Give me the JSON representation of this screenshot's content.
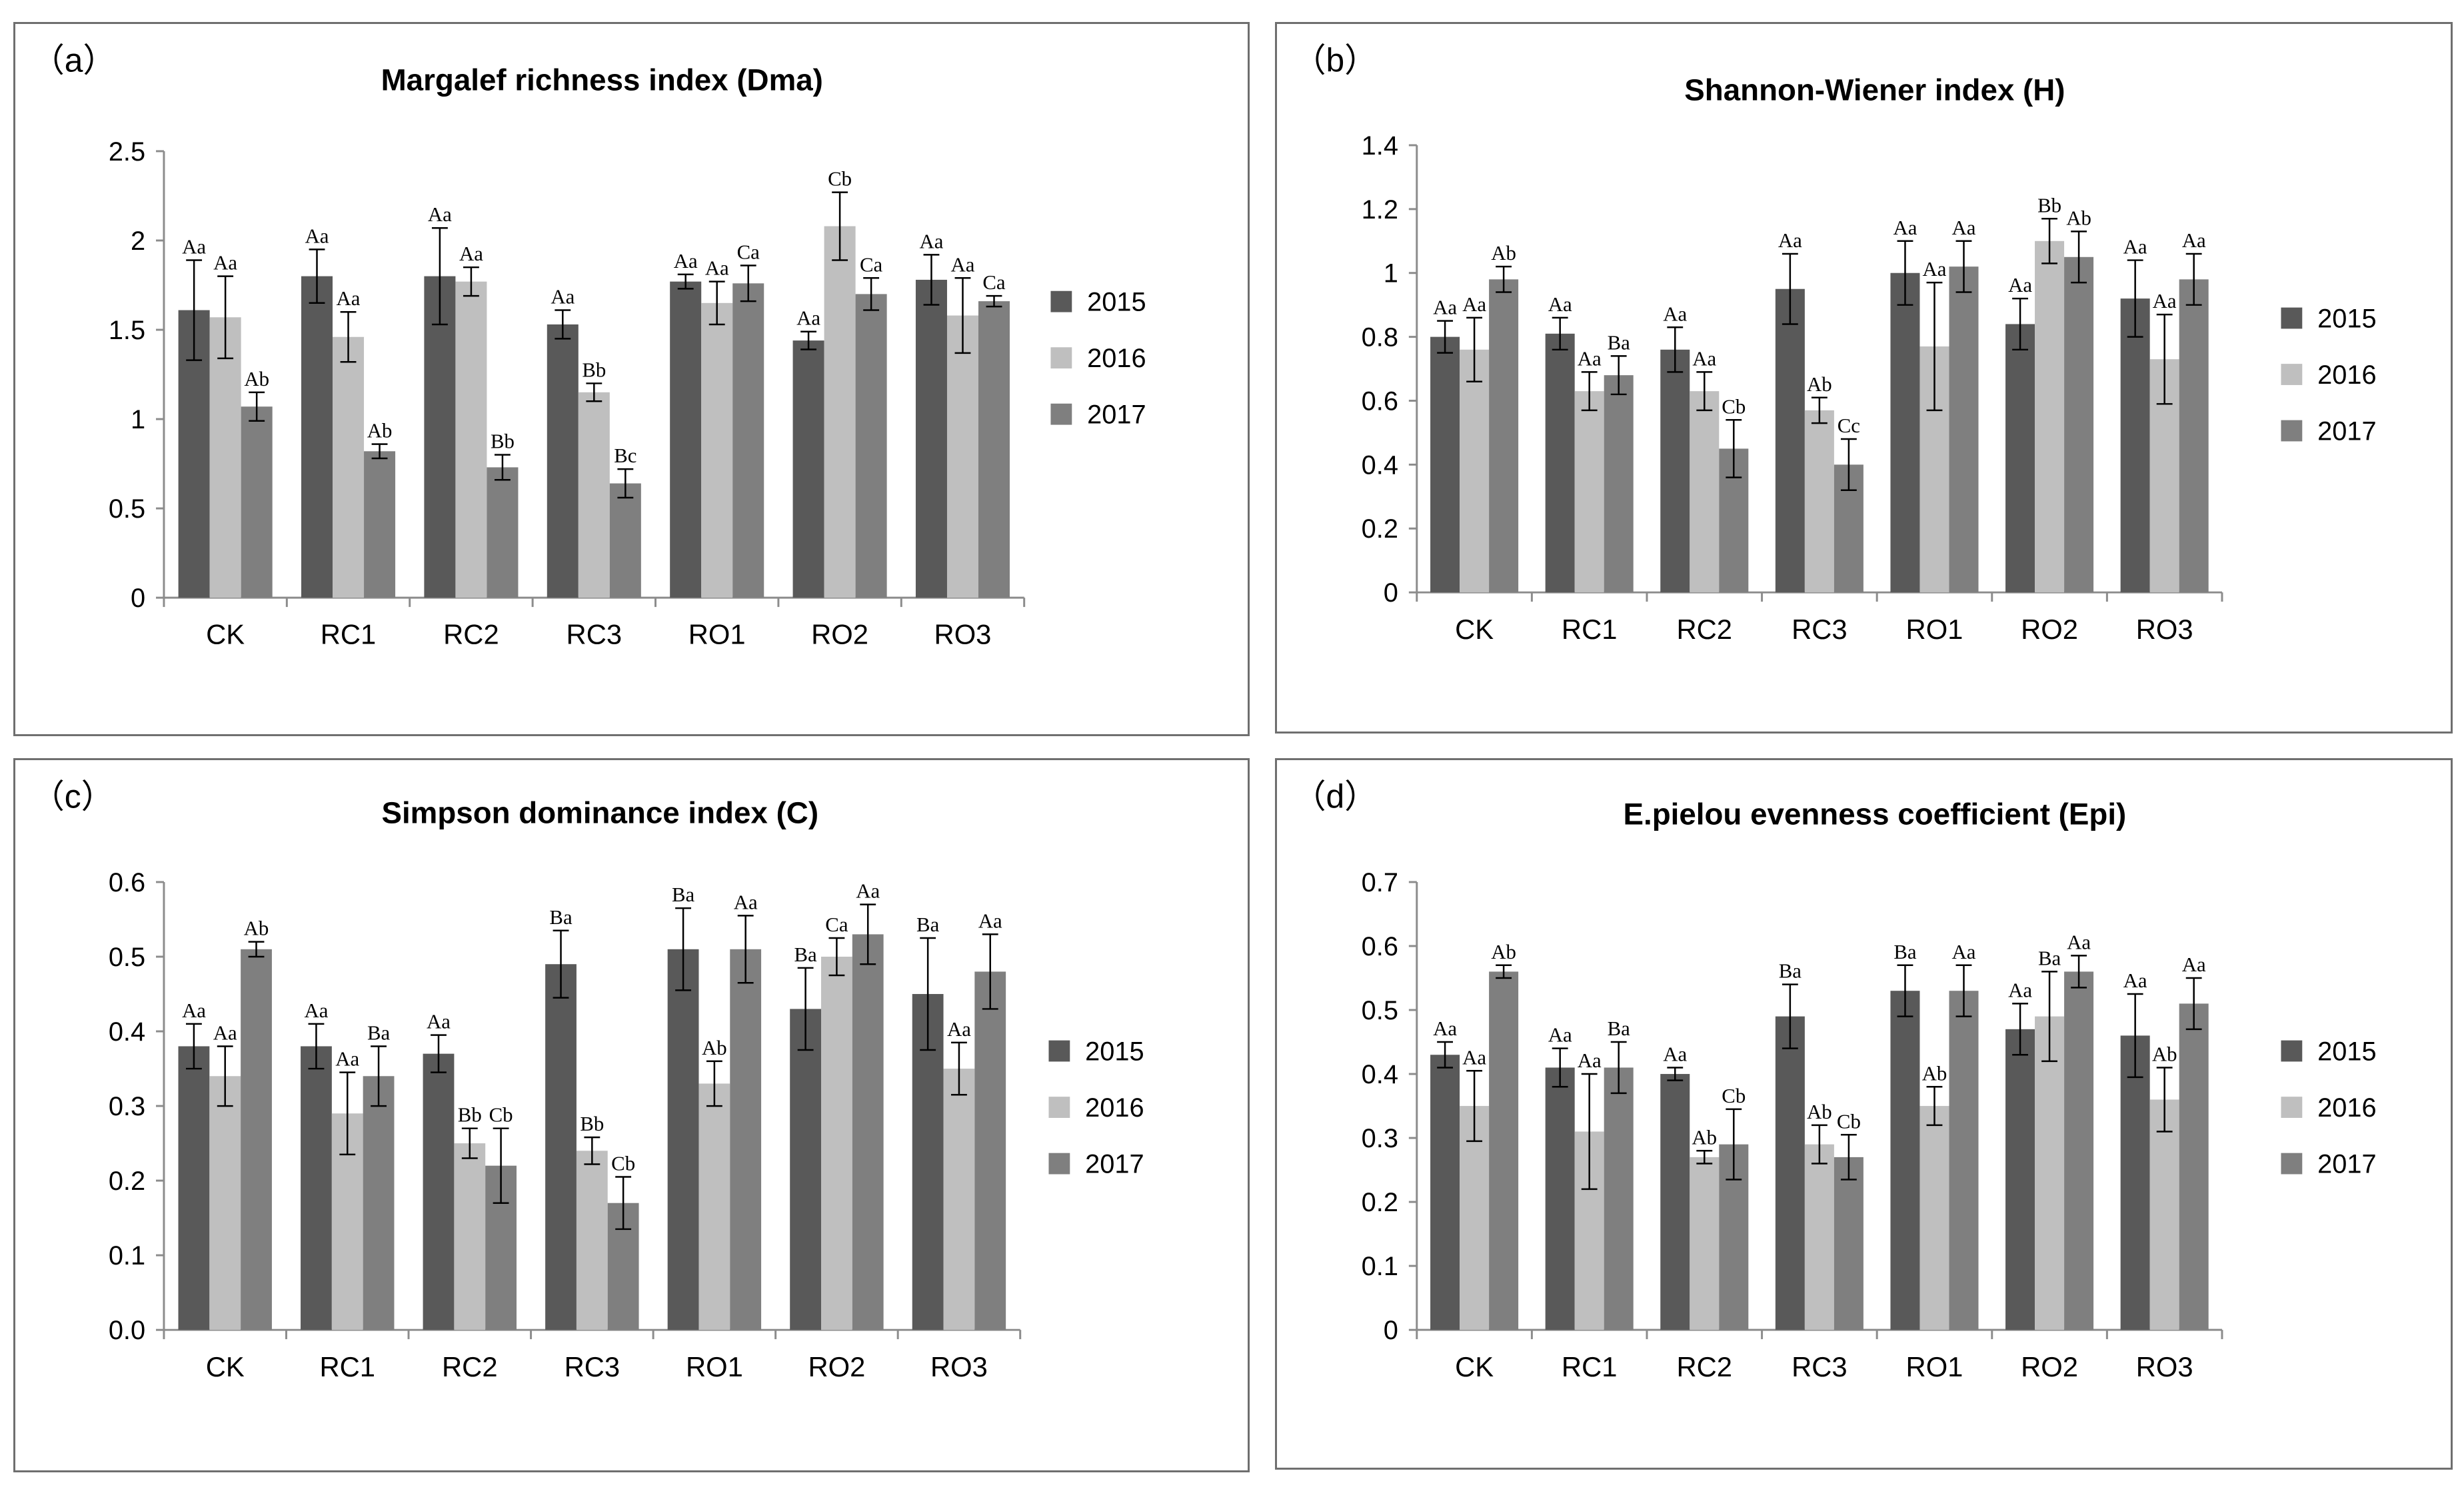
{
  "series_names": [
    "2015",
    "2016",
    "2017"
  ],
  "colors": {
    "2015": "#595959",
    "2016": "#bfbfbf",
    "2017": "#7f7f7f",
    "axis": "#8c8c8c",
    "border": "#6f6f6f",
    "errorbar": "#000000"
  },
  "chart_data": [
    {
      "id": "a",
      "panel_label": "（a）",
      "type": "bar",
      "title": "Margalef richness index (Dma)",
      "categories": [
        "CK",
        "RC1",
        "RC2",
        "RC3",
        "RO1",
        "RO2",
        "RO3"
      ],
      "ylim": [
        0,
        2.5
      ],
      "yticks": [
        0,
        0.5,
        1,
        1.5,
        2,
        2.5
      ],
      "ytick_labels": [
        "0",
        "0.5",
        "1",
        "1.5",
        "2",
        "2.5"
      ],
      "legend_position": "right",
      "series": [
        {
          "name": "2015",
          "values": [
            1.61,
            1.8,
            1.8,
            1.53,
            1.77,
            1.44,
            1.78
          ],
          "errors": [
            0.28,
            0.15,
            0.27,
            0.08,
            0.04,
            0.05,
            0.14
          ],
          "labels": [
            "Aa",
            "Aa",
            "Aa",
            "Aa",
            "Aa",
            "Aa",
            "Aa"
          ]
        },
        {
          "name": "2016",
          "values": [
            1.57,
            1.46,
            1.77,
            1.15,
            1.65,
            2.08,
            1.58
          ],
          "errors": [
            0.23,
            0.14,
            0.08,
            0.05,
            0.12,
            0.19,
            0.21
          ],
          "labels": [
            "Aa",
            "Aa",
            "Aa",
            "Bb",
            "Aa",
            "Cb",
            "Aa"
          ]
        },
        {
          "name": "2017",
          "values": [
            1.07,
            0.82,
            0.73,
            0.64,
            1.76,
            1.7,
            1.66
          ],
          "errors": [
            0.08,
            0.04,
            0.07,
            0.08,
            0.1,
            0.09,
            0.03
          ],
          "labels": [
            "Ab",
            "Ab",
            "Bb",
            "Bc",
            "Ca",
            "Ca",
            "Ca"
          ]
        }
      ]
    },
    {
      "id": "b",
      "panel_label": "（b）",
      "type": "bar",
      "title": "Shannon-Wiener index (H)",
      "categories": [
        "CK",
        "RC1",
        "RC2",
        "RC3",
        "RO1",
        "RO2",
        "RO3"
      ],
      "ylim": [
        0,
        1.4
      ],
      "yticks": [
        0,
        0.2,
        0.4,
        0.6,
        0.8,
        1.0,
        1.2,
        1.4
      ],
      "ytick_labels": [
        "0",
        "0.2",
        "0.4",
        "0.6",
        "0.8",
        "1",
        "1.2",
        "1.4"
      ],
      "legend_position": "right",
      "series": [
        {
          "name": "2015",
          "values": [
            0.8,
            0.81,
            0.76,
            0.95,
            1.0,
            0.84,
            0.92
          ],
          "errors": [
            0.05,
            0.05,
            0.07,
            0.11,
            0.1,
            0.08,
            0.12
          ],
          "labels": [
            "Aa",
            "Aa",
            "Aa",
            "Aa",
            "Aa",
            "Aa",
            "Aa"
          ]
        },
        {
          "name": "2016",
          "values": [
            0.76,
            0.63,
            0.63,
            0.57,
            0.77,
            1.1,
            0.73
          ],
          "errors": [
            0.1,
            0.06,
            0.06,
            0.04,
            0.2,
            0.07,
            0.14
          ],
          "labels": [
            "Aa",
            "Aa",
            "Aa",
            "Ab",
            "Aa",
            "Bb",
            "Aa"
          ]
        },
        {
          "name": "2017",
          "values": [
            0.98,
            0.68,
            0.45,
            0.4,
            1.02,
            1.05,
            0.98
          ],
          "errors": [
            0.04,
            0.06,
            0.09,
            0.08,
            0.08,
            0.08,
            0.08
          ],
          "labels": [
            "Ab",
            "Ba",
            "Cb",
            "Cc",
            "Aa",
            "Ab",
            "Aa"
          ]
        }
      ]
    },
    {
      "id": "c",
      "panel_label": "（c）",
      "type": "bar",
      "title": "Simpson dominance index (C)",
      "categories": [
        "CK",
        "RC1",
        "RC2",
        "RC3",
        "RO1",
        "RO2",
        "RO3"
      ],
      "ylim": [
        0,
        0.6
      ],
      "yticks": [
        0,
        0.1,
        0.2,
        0.3,
        0.4,
        0.5,
        0.6
      ],
      "ytick_labels": [
        "0.0",
        "0.1",
        "0.2",
        "0.3",
        "0.4",
        "0.5",
        "0.6"
      ],
      "legend_position": "right",
      "series": [
        {
          "name": "2015",
          "values": [
            0.38,
            0.38,
            0.37,
            0.49,
            0.51,
            0.43,
            0.45
          ],
          "errors": [
            0.03,
            0.03,
            0.025,
            0.045,
            0.055,
            0.055,
            0.075
          ],
          "labels": [
            "Aa",
            "Aa",
            "Aa",
            "Ba",
            "Ba",
            "Ba",
            "Ba"
          ]
        },
        {
          "name": "2016",
          "values": [
            0.34,
            0.29,
            0.25,
            0.24,
            0.33,
            0.5,
            0.35
          ],
          "errors": [
            0.04,
            0.055,
            0.02,
            0.018,
            0.03,
            0.025,
            0.035
          ],
          "labels": [
            "Aa",
            "Aa",
            "Bb",
            "Bb",
            "Ab",
            "Ca",
            "Aa"
          ]
        },
        {
          "name": "2017",
          "values": [
            0.51,
            0.34,
            0.22,
            0.17,
            0.51,
            0.53,
            0.48
          ],
          "errors": [
            0.01,
            0.04,
            0.05,
            0.035,
            0.045,
            0.04,
            0.05
          ],
          "labels": [
            "Ab",
            "Ba",
            "Cb",
            "Cb",
            "Aa",
            "Aa",
            "Aa"
          ]
        }
      ]
    },
    {
      "id": "d",
      "panel_label": "（d）",
      "type": "bar",
      "title": "E.pielou evenness coefficient (Epi)",
      "categories": [
        "CK",
        "RC1",
        "RC2",
        "RC3",
        "RO1",
        "RO2",
        "RO3"
      ],
      "ylim": [
        0,
        0.7
      ],
      "yticks": [
        0,
        0.1,
        0.2,
        0.3,
        0.4,
        0.5,
        0.6,
        0.7
      ],
      "ytick_labels": [
        "0",
        "0.1",
        "0.2",
        "0.3",
        "0.4",
        "0.5",
        "0.6",
        "0.7"
      ],
      "legend_position": "right",
      "series": [
        {
          "name": "2015",
          "values": [
            0.43,
            0.41,
            0.4,
            0.49,
            0.53,
            0.47,
            0.46
          ],
          "errors": [
            0.02,
            0.03,
            0.01,
            0.05,
            0.04,
            0.04,
            0.065
          ],
          "labels": [
            "Aa",
            "Aa",
            "Aa",
            "Ba",
            "Ba",
            "Aa",
            "Aa"
          ]
        },
        {
          "name": "2016",
          "values": [
            0.35,
            0.31,
            0.27,
            0.29,
            0.35,
            0.49,
            0.36
          ],
          "errors": [
            0.055,
            0.09,
            0.01,
            0.03,
            0.03,
            0.07,
            0.05
          ],
          "labels": [
            "Aa",
            "Aa",
            "Ab",
            "Ab",
            "Ab",
            "Ba",
            "Ab"
          ]
        },
        {
          "name": "2017",
          "values": [
            0.56,
            0.41,
            0.29,
            0.27,
            0.53,
            0.56,
            0.51
          ],
          "errors": [
            0.01,
            0.04,
            0.055,
            0.035,
            0.04,
            0.025,
            0.04
          ],
          "labels": [
            "Ab",
            "Ba",
            "Cb",
            "Cb",
            "Aa",
            "Aa",
            "Aa"
          ]
        }
      ]
    }
  ]
}
